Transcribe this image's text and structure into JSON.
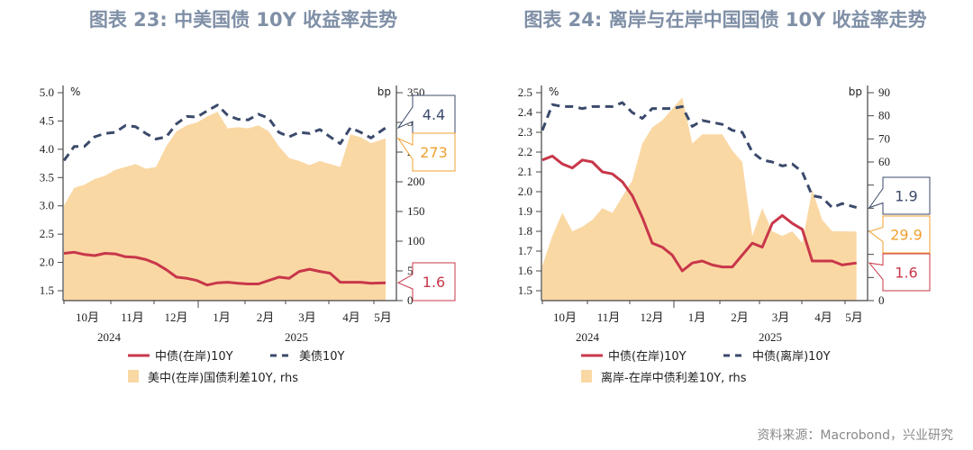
{
  "colors": {
    "cn_onshore": "#c8374a",
    "us_offshore": "#3b4a6b",
    "spread_fill": "#fad8a4",
    "spread_text": "#f0a030",
    "title": "#7f8fa6"
  },
  "source": "资料来源：Macrobond，兴业研究",
  "chart_data": [
    {
      "type": "line+area",
      "title": "图表 23: 中美国债 10Y 收益率走势",
      "left_unit": "%",
      "right_unit": "bp",
      "left_ylim": [
        1.33,
        5.0
      ],
      "right_ylim": [
        0,
        350
      ],
      "left_ticks": [
        "1.5",
        "2.0",
        "2.5",
        "3.0",
        "3.5",
        "4.0",
        "4.5",
        "5.0"
      ],
      "right_ticks": [
        "0",
        "50",
        "100",
        "150",
        "200",
        "250",
        "300",
        "350"
      ],
      "month_labels": [
        "10月",
        "11月",
        "12月",
        "1月",
        "2月",
        "3月",
        "4月",
        "5月"
      ],
      "year_labels": [
        "2024",
        "2025"
      ],
      "grid": false,
      "legend_position": "bottom",
      "x": [
        "2024-10-01",
        "2024-10-08",
        "2024-10-15",
        "2024-10-22",
        "2024-10-29",
        "2024-11-05",
        "2024-11-12",
        "2024-11-19",
        "2024-11-26",
        "2024-12-03",
        "2024-12-10",
        "2024-12-17",
        "2024-12-24",
        "2024-12-31",
        "2025-01-07",
        "2025-01-14",
        "2025-01-21",
        "2025-01-28",
        "2025-02-04",
        "2025-02-11",
        "2025-02-18",
        "2025-02-25",
        "2025-03-04",
        "2025-03-11",
        "2025-03-18",
        "2025-03-25",
        "2025-04-01",
        "2025-04-08",
        "2025-04-15",
        "2025-04-22",
        "2025-04-29",
        "2025-05-09"
      ],
      "series": [
        {
          "name": "中债(在岸)10Y",
          "axis": "left",
          "style": "solid",
          "values": [
            2.16,
            2.18,
            2.14,
            2.12,
            2.16,
            2.15,
            2.1,
            2.09,
            2.05,
            1.98,
            1.87,
            1.74,
            1.72,
            1.68,
            1.6,
            1.64,
            1.65,
            1.63,
            1.62,
            1.62,
            1.68,
            1.74,
            1.72,
            1.84,
            1.88,
            1.84,
            1.81,
            1.65,
            1.65,
            1.65,
            1.63,
            1.64
          ],
          "last_label": "1.6"
        },
        {
          "name": "美债10Y",
          "axis": "left",
          "style": "dashed",
          "values": [
            3.8,
            4.05,
            4.05,
            4.22,
            4.28,
            4.3,
            4.42,
            4.4,
            4.28,
            4.18,
            4.22,
            4.45,
            4.58,
            4.57,
            4.68,
            4.78,
            4.6,
            4.53,
            4.52,
            4.62,
            4.55,
            4.3,
            4.22,
            4.3,
            4.28,
            4.35,
            4.22,
            4.1,
            4.38,
            4.3,
            4.2,
            4.38
          ],
          "last_label": "4.4"
        },
        {
          "name": "美中(在岸)国债利差10Y, rhs",
          "axis": "right",
          "style": "area",
          "values": [
            160,
            190,
            195,
            205,
            210,
            220,
            225,
            230,
            222,
            225,
            260,
            285,
            295,
            300,
            310,
            318,
            290,
            292,
            290,
            295,
            285,
            260,
            240,
            235,
            228,
            235,
            230,
            225,
            280,
            275,
            265,
            273
          ],
          "last_label": "273"
        }
      ],
      "legend": [
        "中债(在岸)10Y",
        "美债10Y",
        "美中(在岸)国债利差10Y, rhs"
      ]
    },
    {
      "type": "line+area",
      "title": "图表 24: 离岸与在岸中国国债 10Y 收益率走势",
      "left_unit": "%",
      "right_unit": "bp",
      "left_ylim": [
        1.45,
        2.5
      ],
      "right_ylim": [
        0,
        90
      ],
      "left_ticks": [
        "1.5",
        "1.6",
        "1.7",
        "1.8",
        "1.9",
        "2.0",
        "2.1",
        "2.2",
        "2.3",
        "2.4",
        "2.5"
      ],
      "right_ticks": [
        "0",
        "10",
        "20",
        "30",
        "40",
        "50",
        "60",
        "70",
        "80",
        "90"
      ],
      "right_tick_labels_shown": [
        "0",
        "60",
        "70",
        "80",
        "90"
      ],
      "month_labels": [
        "10月",
        "11月",
        "12月",
        "1月",
        "2月",
        "3月",
        "4月",
        "5月"
      ],
      "year_labels": [
        "2024",
        "2025"
      ],
      "grid": false,
      "legend_position": "bottom",
      "x": [
        "2024-10-01",
        "2024-10-08",
        "2024-10-15",
        "2024-10-22",
        "2024-10-29",
        "2024-11-05",
        "2024-11-12",
        "2024-11-19",
        "2024-11-26",
        "2024-12-03",
        "2024-12-10",
        "2024-12-17",
        "2024-12-24",
        "2024-12-31",
        "2025-01-07",
        "2025-01-14",
        "2025-01-21",
        "2025-01-28",
        "2025-02-04",
        "2025-02-11",
        "2025-02-18",
        "2025-02-25",
        "2025-03-04",
        "2025-03-11",
        "2025-03-18",
        "2025-03-25",
        "2025-04-01",
        "2025-04-08",
        "2025-04-15",
        "2025-04-22",
        "2025-04-29",
        "2025-05-09"
      ],
      "series": [
        {
          "name": "中债(在岸)10Y",
          "axis": "left",
          "style": "solid",
          "values": [
            2.16,
            2.18,
            2.14,
            2.12,
            2.16,
            2.15,
            2.1,
            2.09,
            2.05,
            1.98,
            1.87,
            1.74,
            1.72,
            1.68,
            1.6,
            1.64,
            1.65,
            1.63,
            1.62,
            1.62,
            1.68,
            1.74,
            1.72,
            1.84,
            1.88,
            1.84,
            1.81,
            1.65,
            1.65,
            1.65,
            1.63,
            1.64
          ],
          "last_label": "1.6"
        },
        {
          "name": "中债(离岸)10Y",
          "axis": "left",
          "style": "dashed",
          "values": [
            2.31,
            2.44,
            2.43,
            2.43,
            2.42,
            2.43,
            2.43,
            2.43,
            2.45,
            2.4,
            2.37,
            2.42,
            2.42,
            2.42,
            2.43,
            2.33,
            2.36,
            2.35,
            2.34,
            2.31,
            2.3,
            2.2,
            2.16,
            2.15,
            2.13,
            2.14,
            2.1,
            1.98,
            1.97,
            1.92,
            1.94,
            1.92
          ],
          "last_label": "1.9"
        },
        {
          "name": "离岸-在岸中债利差10Y, rhs",
          "axis": "right",
          "style": "area",
          "values": [
            15,
            28,
            38,
            30,
            32,
            35,
            40,
            38,
            45,
            52,
            68,
            75,
            78,
            83,
            88,
            68,
            72,
            72,
            72,
            65,
            60,
            28,
            40,
            30,
            28,
            30,
            25,
            48,
            35,
            30,
            30,
            29.9
          ],
          "last_label": "29.9"
        }
      ],
      "legend": [
        "中债(在岸)10Y",
        "中债(离岸)10Y",
        "离岸-在岸中债利差10Y, rhs"
      ]
    }
  ]
}
